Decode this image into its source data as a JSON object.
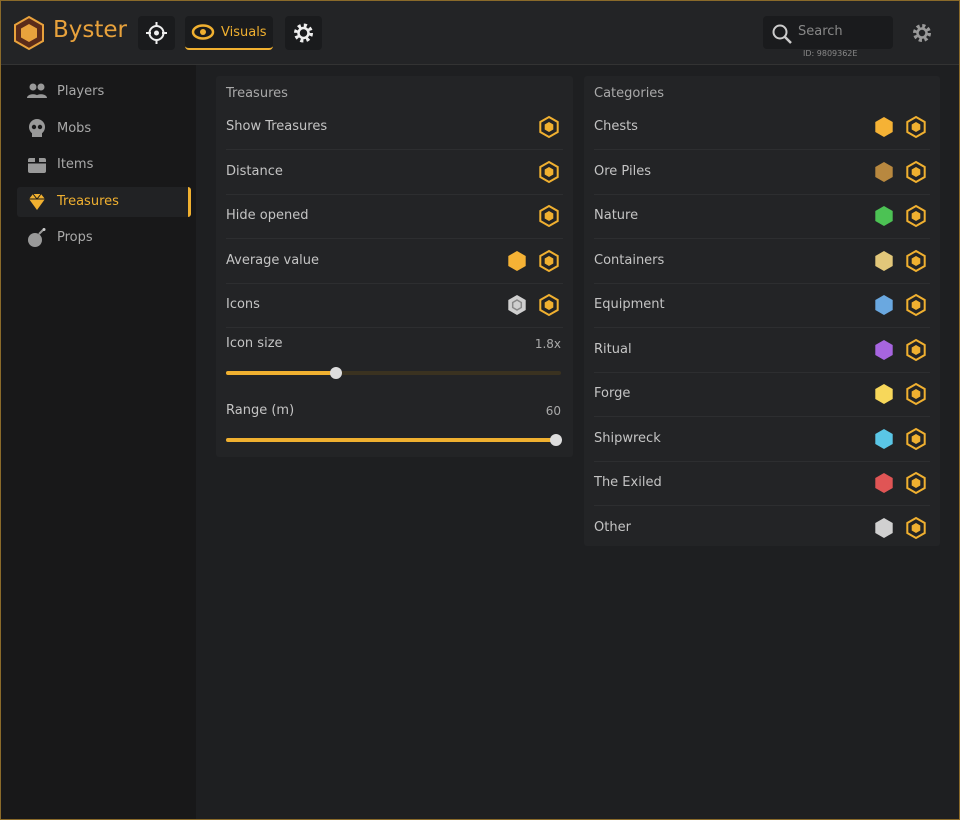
{
  "header": {
    "brand": "Byster",
    "tab": "Visuals",
    "search_placeholder": "Search",
    "id": "ID: 9809362E"
  },
  "sidebar": [
    "Players",
    "Mobs",
    "Items",
    "Treasures",
    "Props"
  ],
  "treasures": {
    "title": "Treasures",
    "rows": [
      "Show Treasures",
      "Distance",
      "Hide opened",
      "Average value",
      "Icons"
    ],
    "sliders": [
      {
        "label": "Icon size",
        "value": "1.8x"
      },
      {
        "label": "Range (m)",
        "value": "60"
      }
    ]
  },
  "categories": {
    "title": "Categories",
    "items": [
      {
        "name": "Chests",
        "color": "#f5b235"
      },
      {
        "name": "Ore Piles",
        "color": "#b8883f"
      },
      {
        "name": "Nature",
        "color": "#4cc254"
      },
      {
        "name": "Containers",
        "color": "#e2c77a"
      },
      {
        "name": "Equipment",
        "color": "#6aa8e0"
      },
      {
        "name": "Ritual",
        "color": "#a765e0"
      },
      {
        "name": "Forge",
        "color": "#f7d75a"
      },
      {
        "name": "Shipwreck",
        "color": "#5ac6e6"
      },
      {
        "name": "The Exiled",
        "color": "#e05555"
      },
      {
        "name": "Other",
        "color": "#d0d0d0"
      }
    ]
  }
}
